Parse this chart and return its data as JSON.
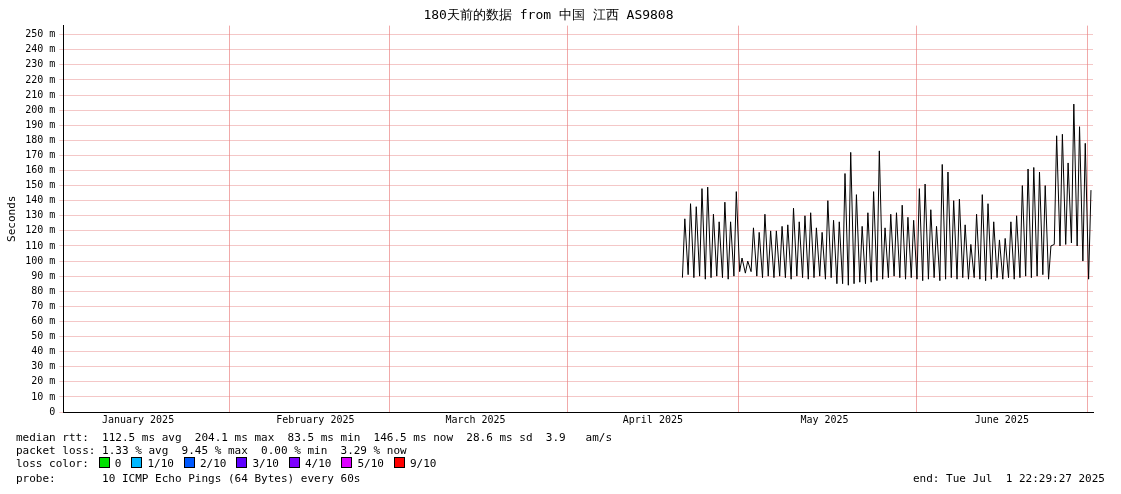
{
  "chart_data": {
    "type": "line",
    "title": "180天前的数据 from 中国 江西 AS9808",
    "ylabel": "Seconds",
    "xlim": [
      "2025-01-02T22:29",
      "2025-07-01T22:29"
    ],
    "xticks": [
      {
        "value": "2025-01-16",
        "label": "January 2025"
      },
      {
        "value": "2025-02-01",
        "label": null
      },
      {
        "value": "2025-02-16",
        "label": "February 2025"
      },
      {
        "value": "2025-03-01",
        "label": null
      },
      {
        "value": "2025-03-16",
        "label": "March 2025"
      },
      {
        "value": "2025-04-01",
        "label": null
      },
      {
        "value": "2025-04-16",
        "label": "April 2025"
      },
      {
        "value": "2025-05-01",
        "label": null
      },
      {
        "value": "2025-05-16",
        "label": "May 2025"
      },
      {
        "value": "2025-06-01",
        "label": null
      },
      {
        "value": "2025-06-16",
        "label": "June 2025"
      },
      {
        "value": "2025-07-01",
        "label": null
      }
    ],
    "ylim": [
      0,
      256
    ],
    "yticks": [
      0,
      {
        "value": 10,
        "label": "10 m"
      },
      {
        "value": 20,
        "label": "20 m"
      },
      {
        "value": 30,
        "label": "30 m"
      },
      {
        "value": 40,
        "label": "40 m"
      },
      {
        "value": 50,
        "label": "50 m"
      },
      {
        "value": 60,
        "label": "60 m"
      },
      {
        "value": 70,
        "label": "70 m"
      },
      {
        "value": 80,
        "label": "80 m"
      },
      {
        "value": 90,
        "label": "90 m"
      },
      {
        "value": 100,
        "label": "100 m"
      },
      {
        "value": 110,
        "label": "110 m"
      },
      {
        "value": 120,
        "label": "120 m"
      },
      {
        "value": 130,
        "label": "130 m"
      },
      {
        "value": 140,
        "label": "140 m"
      },
      {
        "value": 150,
        "label": "150 m"
      },
      {
        "value": 160,
        "label": "160 m"
      },
      {
        "value": 170,
        "label": "170 m"
      },
      {
        "value": 180,
        "label": "180 m"
      },
      {
        "value": 190,
        "label": "190 m"
      },
      {
        "value": 200,
        "label": "200 m"
      },
      {
        "value": 210,
        "label": "210 m"
      },
      {
        "value": 220,
        "label": "220 m"
      },
      {
        "value": 230,
        "label": "230 m"
      },
      {
        "value": 240,
        "label": "240 m"
      },
      {
        "value": 250,
        "label": "250 m"
      }
    ],
    "grid": true,
    "line_style": "solid",
    "series": [
      {
        "color": "#000000",
        "x": [
          "2025-04-21T04:00",
          "2025-04-21T14:00",
          "2025-04-22T04:00",
          "2025-04-22T14:00",
          "2025-04-23T04:00",
          "2025-04-23T14:00",
          "2025-04-24T04:00",
          "2025-04-24T14:00",
          "2025-04-25T04:00",
          "2025-04-25T14:00",
          "2025-04-26T04:00",
          "2025-04-26T14:00",
          "2025-04-27T04:00",
          "2025-04-27T14:00",
          "2025-04-28T04:00",
          "2025-04-28T14:00",
          "2025-04-29T04:00",
          "2025-04-29T14:00",
          "2025-04-30T04:00",
          "2025-04-30T14:00",
          "2025-05-01T04:00",
          "2025-05-01T14:00",
          "2025-05-02T04:00",
          "2025-05-02T14:00",
          "2025-05-03T04:00",
          "2025-05-03T14:00",
          "2025-05-04T04:00",
          "2025-05-04T14:00",
          "2025-05-05T04:00",
          "2025-05-05T14:00",
          "2025-05-06T04:00",
          "2025-05-06T14:00",
          "2025-05-07T04:00",
          "2025-05-07T14:00",
          "2025-05-08T04:00",
          "2025-05-08T14:00",
          "2025-05-09T04:00",
          "2025-05-09T14:00",
          "2025-05-10T04:00",
          "2025-05-10T14:00",
          "2025-05-11T04:00",
          "2025-05-11T14:00",
          "2025-05-12T04:00",
          "2025-05-12T14:00",
          "2025-05-13T04:00",
          "2025-05-13T14:00",
          "2025-05-14T04:00",
          "2025-05-14T14:00",
          "2025-05-15T04:00",
          "2025-05-15T14:00",
          "2025-05-16T04:00",
          "2025-05-16T14:00",
          "2025-05-17T04:00",
          "2025-05-17T14:00",
          "2025-05-18T04:00",
          "2025-05-18T14:00",
          "2025-05-19T04:00",
          "2025-05-19T14:00",
          "2025-05-20T04:00",
          "2025-05-20T14:00",
          "2025-05-21T04:00",
          "2025-05-21T14:00",
          "2025-05-22T04:00",
          "2025-05-22T14:00",
          "2025-05-23T04:00",
          "2025-05-23T14:00",
          "2025-05-24T04:00",
          "2025-05-24T14:00",
          "2025-05-25T04:00",
          "2025-05-25T14:00",
          "2025-05-26T04:00",
          "2025-05-26T14:00",
          "2025-05-27T04:00",
          "2025-05-27T14:00",
          "2025-05-28T04:00",
          "2025-05-28T14:00",
          "2025-05-29T04:00",
          "2025-05-29T14:00",
          "2025-05-30T04:00",
          "2025-05-30T14:00",
          "2025-05-31T04:00",
          "2025-05-31T14:00",
          "2025-06-01T04:00",
          "2025-06-01T14:00",
          "2025-06-02T04:00",
          "2025-06-02T14:00",
          "2025-06-03T04:00",
          "2025-06-03T14:00",
          "2025-06-04T04:00",
          "2025-06-04T14:00",
          "2025-06-05T04:00",
          "2025-06-05T14:00",
          "2025-06-06T04:00",
          "2025-06-06T14:00",
          "2025-06-07T04:00",
          "2025-06-07T14:00",
          "2025-06-08T04:00",
          "2025-06-08T14:00",
          "2025-06-09T04:00",
          "2025-06-09T14:00",
          "2025-06-10T04:00",
          "2025-06-10T14:00",
          "2025-06-11T04:00",
          "2025-06-11T14:00",
          "2025-06-12T04:00",
          "2025-06-12T14:00",
          "2025-06-13T04:00",
          "2025-06-13T14:00",
          "2025-06-14T04:00",
          "2025-06-14T14:00",
          "2025-06-15T04:00",
          "2025-06-15T14:00",
          "2025-06-16T04:00",
          "2025-06-16T14:00",
          "2025-06-17T04:00",
          "2025-06-17T14:00",
          "2025-06-18T04:00",
          "2025-06-18T14:00",
          "2025-06-19T04:00",
          "2025-06-19T14:00",
          "2025-06-20T04:00",
          "2025-06-20T14:00",
          "2025-06-21T04:00",
          "2025-06-21T14:00",
          "2025-06-22T04:00",
          "2025-06-22T14:00",
          "2025-06-23T04:00",
          "2025-06-23T14:00",
          "2025-06-24T04:00",
          "2025-06-24T14:00",
          "2025-06-25T04:00",
          "2025-06-25T14:00",
          "2025-06-26T04:00",
          "2025-06-26T14:00",
          "2025-06-27T04:00",
          "2025-06-27T14:00",
          "2025-06-28T04:00",
          "2025-06-28T14:00",
          "2025-06-29T04:00",
          "2025-06-29T14:00",
          "2025-06-30T04:00",
          "2025-06-30T14:00",
          "2025-07-01T04:00",
          "2025-07-01T14:00"
        ],
        "values": [
          89,
          128,
          91,
          138,
          89,
          136,
          90,
          148,
          88,
          149,
          89,
          131,
          90,
          126,
          89,
          139,
          88,
          126,
          90,
          146,
          93,
          102,
          92,
          100,
          93,
          122,
          90,
          119,
          89,
          131,
          90,
          120,
          89,
          120,
          90,
          123,
          89,
          124,
          88,
          135,
          90,
          126,
          89,
          130,
          88,
          132,
          89,
          122,
          90,
          119,
          88,
          140,
          89,
          127,
          85,
          126,
          85,
          158,
          84,
          172,
          85,
          144,
          86,
          123,
          85,
          132,
          86,
          146,
          87,
          173,
          88,
          122,
          89,
          131,
          90,
          132,
          89,
          137,
          88,
          129,
          89,
          127,
          88,
          148,
          87,
          151,
          88,
          134,
          89,
          123,
          87,
          164,
          88,
          159,
          89,
          140,
          88,
          141,
          89,
          124,
          88,
          111,
          89,
          131,
          88,
          144,
          87,
          138,
          88,
          126,
          89,
          114,
          88,
          115,
          89,
          126,
          88,
          130,
          89,
          150,
          90,
          161,
          89,
          162,
          90,
          159,
          91,
          150,
          88,
          110,
          111,
          183,
          110,
          184,
          111,
          165,
          112,
          204,
          110,
          189,
          100,
          178,
          88,
          147
        ]
      }
    ],
    "annotations": [
      "median rtt:  112.5 ms avg  204.1 ms max  83.5 ms min  146.5 ms now  28.6 ms sd  3.9   am/s",
      "packet loss: 1.33 % avg  9.45 % max  0.00 % min  3.29 % now",
      "loss color:",
      "0",
      "1/10",
      "2/10",
      "3/10",
      "4/10",
      "5/10",
      "9/10",
      "probe:       10 ICMP Echo Pings (64 Bytes) every 60s",
      "end: Tue Jul  1 22:29:27 2025"
    ]
  }
}
